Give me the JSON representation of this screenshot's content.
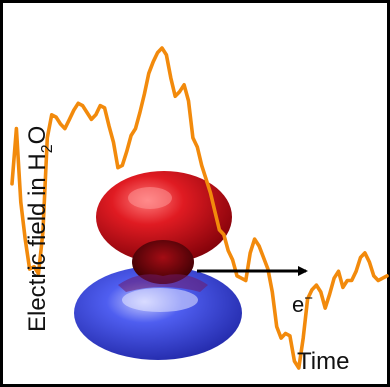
{
  "labels": {
    "ylabel_main": "Electric field in H",
    "ylabel_sub": "2",
    "ylabel_tail": "O",
    "xlabel": "Time",
    "electron": "e",
    "electron_sup": "−"
  },
  "colors": {
    "signal": "#f28a0c",
    "lobe_red": "#c8101a",
    "lobe_blue": "#2030c8",
    "arrow": "#000000",
    "frame": "#000000"
  },
  "chart_data": {
    "type": "line",
    "title": "",
    "xlabel": "Time",
    "ylabel": "Electric field in H2O",
    "grid": false,
    "series": [
      {
        "values": [
          0.42,
          0.66,
          0.34,
          0.18,
          0.05,
          0.06,
          0.03,
          0.21,
          0.62,
          0.72,
          0.71,
          0.68,
          0.66,
          0.7,
          0.74,
          0.77,
          0.76,
          0.73,
          0.7,
          0.72,
          0.76,
          0.75,
          0.67,
          0.6,
          0.49,
          0.5,
          0.56,
          0.63,
          0.66,
          0.73,
          0.81,
          0.9,
          0.95,
          0.99,
          1.01,
          0.98,
          0.88,
          0.8,
          0.82,
          0.85,
          0.78,
          0.62,
          0.58,
          0.5,
          0.44,
          0.38,
          0.3,
          0.22,
          0.2,
          0.13,
          0.09,
          0.02,
          0.01,
          0.0,
          0.12,
          0.18,
          0.15,
          0.1,
          0.05,
          -0.05,
          -0.2,
          -0.25,
          -0.23,
          -0.24,
          -0.35,
          -0.38,
          -0.25,
          -0.08,
          -0.04,
          -0.02,
          -0.05,
          -0.12,
          -0.06,
          0.01,
          0.04,
          -0.03,
          0.0,
          0.0,
          0.04,
          0.1,
          0.12,
          0.08,
          0.02,
          0.0,
          0.01,
          0.02
        ]
      }
    ]
  }
}
